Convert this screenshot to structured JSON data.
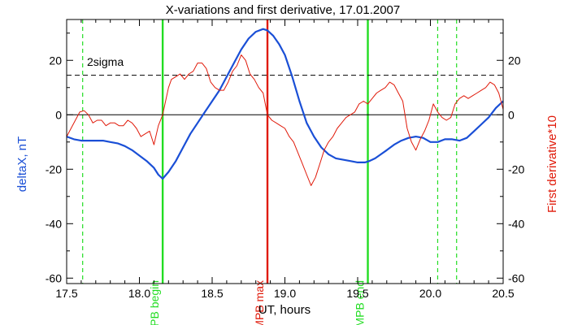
{
  "chart_data": {
    "type": "line",
    "title": "X-variations and first derivative, 17.01.2007",
    "xlabel": "UT, hours",
    "ylabel_left": "deltaX, nT",
    "ylabel_right": "First derivative*10",
    "xlim": [
      17.5,
      20.5
    ],
    "ylim": [
      -62,
      35
    ],
    "x_ticks": [
      17.5,
      18.0,
      18.5,
      19.0,
      19.5,
      20.0,
      20.5
    ],
    "x_tick_labels": [
      "17.5",
      "18.0",
      "18.5",
      "19.0",
      "19.5",
      "20.0",
      "20.5"
    ],
    "y_ticks": [
      -60,
      -40,
      -20,
      0,
      20
    ],
    "y_tick_labels": [
      "-60",
      "-40",
      "-20",
      "0",
      "20"
    ],
    "grid": false,
    "colors": {
      "deltaX": "#1a4fd6",
      "derivative": "#e01a0a",
      "mpb_edges": "#22dd22",
      "mpb_max": "#e01a0a",
      "reference": "#000000"
    },
    "threshold_label": "2sigma",
    "threshold_value": 14.5,
    "zero_line": 0,
    "vertical_markers": [
      {
        "label": "MPB begin",
        "x": 18.16,
        "style": "solid",
        "color": "#22dd22"
      },
      {
        "label": "MPB max",
        "x": 18.88,
        "style": "solid",
        "color": "#e01a0a"
      },
      {
        "label": "MPB end",
        "x": 19.57,
        "style": "solid",
        "color": "#22dd22"
      },
      {
        "label": "",
        "x": 17.61,
        "style": "dashed",
        "color": "#22dd22"
      },
      {
        "label": "",
        "x": 20.05,
        "style": "dashed",
        "color": "#22dd22"
      },
      {
        "label": "",
        "x": 20.18,
        "style": "dashed",
        "color": "#22dd22"
      }
    ],
    "series": [
      {
        "key": "deltaX",
        "x": [
          17.5,
          17.55,
          17.6,
          17.65,
          17.7,
          17.75,
          17.8,
          17.85,
          17.9,
          17.95,
          18.0,
          18.05,
          18.1,
          18.13,
          18.16,
          18.2,
          18.25,
          18.3,
          18.35,
          18.4,
          18.45,
          18.5,
          18.55,
          18.6,
          18.65,
          18.7,
          18.75,
          18.8,
          18.85,
          18.88,
          18.92,
          18.96,
          19.0,
          19.05,
          19.1,
          19.15,
          19.2,
          19.25,
          19.3,
          19.35,
          19.4,
          19.45,
          19.5,
          19.55,
          19.58,
          19.62,
          19.66,
          19.7,
          19.75,
          19.8,
          19.85,
          19.9,
          19.95,
          20.0,
          20.05,
          20.1,
          20.15,
          20.2,
          20.25,
          20.3,
          20.35,
          20.4,
          20.45,
          20.5
        ],
        "y": [
          -8,
          -9,
          -9.5,
          -9.5,
          -9.5,
          -9.5,
          -10,
          -10.5,
          -11.5,
          -13,
          -15,
          -17,
          -19.5,
          -22,
          -23.5,
          -21,
          -17,
          -12,
          -7,
          -3,
          1,
          5,
          9,
          14,
          19,
          24,
          28,
          30.5,
          31.5,
          31,
          29,
          26,
          22,
          14,
          5,
          -3,
          -8,
          -12,
          -14.5,
          -16,
          -16.5,
          -17,
          -17.5,
          -17.5,
          -17,
          -16,
          -14.5,
          -13,
          -11,
          -9.5,
          -8.5,
          -8,
          -8.5,
          -10,
          -10,
          -9,
          -9,
          -9.5,
          -8.5,
          -6,
          -3.5,
          -1,
          2.5,
          5
        ]
      },
      {
        "key": "derivative",
        "x": [
          17.5,
          17.53,
          17.56,
          17.59,
          17.62,
          17.65,
          17.68,
          17.71,
          17.74,
          17.77,
          17.8,
          17.83,
          17.86,
          17.89,
          17.92,
          17.95,
          17.98,
          18.01,
          18.04,
          18.07,
          18.1,
          18.13,
          18.16,
          18.18,
          18.2,
          18.22,
          18.25,
          18.28,
          18.31,
          18.34,
          18.37,
          18.4,
          18.43,
          18.46,
          18.49,
          18.52,
          18.55,
          18.58,
          18.61,
          18.64,
          18.67,
          18.7,
          18.73,
          18.76,
          18.79,
          18.82,
          18.85,
          18.88,
          18.91,
          18.94,
          18.97,
          19.0,
          19.03,
          19.06,
          19.09,
          19.12,
          19.15,
          19.18,
          19.21,
          19.24,
          19.27,
          19.3,
          19.33,
          19.36,
          19.39,
          19.42,
          19.45,
          19.48,
          19.51,
          19.54,
          19.57,
          19.6,
          19.63,
          19.66,
          19.69,
          19.72,
          19.75,
          19.78,
          19.81,
          19.84,
          19.87,
          19.9,
          19.93,
          19.96,
          19.99,
          20.02,
          20.05,
          20.08,
          20.11,
          20.14,
          20.17,
          20.2,
          20.23,
          20.26,
          20.29,
          20.32,
          20.35,
          20.38,
          20.41,
          20.44,
          20.47,
          20.5
        ],
        "y": [
          -8,
          -5,
          -2,
          1,
          1.5,
          0,
          -3,
          -2,
          -2,
          -4,
          -3,
          -3,
          -4,
          -4,
          -2,
          -3,
          -5,
          -8,
          -7,
          -6,
          -11,
          -4,
          0,
          5,
          10,
          13,
          14,
          15,
          13,
          15,
          16,
          19,
          19,
          17,
          12,
          10,
          9,
          9,
          12,
          16,
          18,
          22,
          20,
          15,
          13,
          10,
          8,
          0,
          -2,
          -3,
          -4,
          -5,
          -8,
          -10,
          -14,
          -18,
          -22,
          -26,
          -23,
          -18,
          -13,
          -10,
          -8,
          -5,
          -3,
          -1,
          0,
          1,
          4,
          5,
          4,
          6,
          8,
          9,
          10,
          12,
          11,
          8,
          5,
          -5,
          -10,
          -13,
          -9,
          -6,
          -2,
          4,
          1,
          -1,
          -2,
          -1,
          4,
          6,
          7,
          6,
          7,
          8,
          9,
          10,
          12,
          11,
          8,
          2
        ]
      }
    ]
  }
}
